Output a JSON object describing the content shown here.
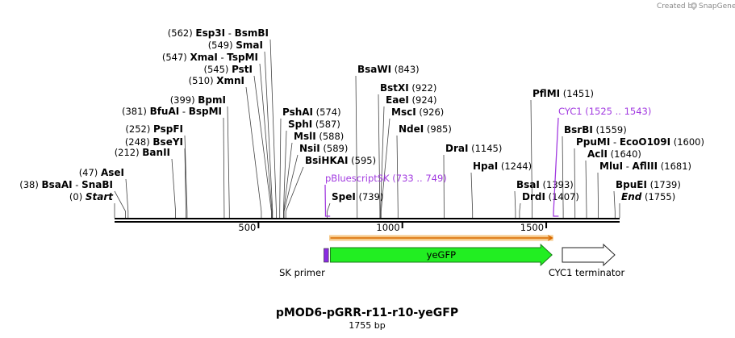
{
  "credit": {
    "text": "Created by",
    "brand": "SnapGene"
  },
  "plasmid": {
    "name": "pMOD6-pGRR-r11-r10-yeGFP",
    "size_label": "1755 bp"
  },
  "ruler": {
    "ticks": [
      {
        "pos": 500,
        "label": "500"
      },
      {
        "pos": 1000,
        "label": "1000"
      },
      {
        "pos": 1500,
        "label": "1500"
      }
    ]
  },
  "sites": [
    {
      "pos": 0,
      "pos_label": "(0)",
      "name": "Start",
      "extra": "",
      "italic": true,
      "side": "left"
    },
    {
      "pos": 38,
      "pos_label": "(38)",
      "name": "BsaAI",
      "extra": "SnaBI",
      "side": "left"
    },
    {
      "pos": 47,
      "pos_label": "(47)",
      "name": "AseI",
      "extra": "",
      "side": "left"
    },
    {
      "pos": 212,
      "pos_label": "(212)",
      "name": "BanII",
      "extra": "",
      "side": "left"
    },
    {
      "pos": 248,
      "pos_label": "(248)",
      "name": "BseYI",
      "extra": "",
      "side": "left"
    },
    {
      "pos": 252,
      "pos_label": "(252)",
      "name": "PspFI",
      "extra": "",
      "side": "left"
    },
    {
      "pos": 381,
      "pos_label": "(381)",
      "name": "BfuAI",
      "extra": "BspMI",
      "side": "left"
    },
    {
      "pos": 399,
      "pos_label": "(399)",
      "name": "BpmI",
      "extra": "",
      "side": "left"
    },
    {
      "pos": 510,
      "pos_label": "(510)",
      "name": "XmnI",
      "extra": "",
      "side": "left"
    },
    {
      "pos": 545,
      "pos_label": "(545)",
      "name": "PstI",
      "extra": "",
      "side": "left"
    },
    {
      "pos": 547,
      "pos_label": "(547)",
      "name": "XmaI",
      "extra": "TspMI",
      "side": "left"
    },
    {
      "pos": 549,
      "pos_label": "(549)",
      "name": "SmaI",
      "extra": "",
      "side": "left"
    },
    {
      "pos": 562,
      "pos_label": "(562)",
      "name": "Esp3I",
      "extra": "BsmBI",
      "side": "left"
    },
    {
      "pos": 574,
      "pos_label": "(574)",
      "name": "PshAI",
      "extra": "",
      "side": "right"
    },
    {
      "pos": 587,
      "pos_label": "(587)",
      "name": "SphI",
      "extra": "",
      "side": "right"
    },
    {
      "pos": 588,
      "pos_label": "(588)",
      "name": "MslI",
      "extra": "",
      "side": "right"
    },
    {
      "pos": 589,
      "pos_label": "(589)",
      "name": "NsiI",
      "extra": "",
      "side": "right"
    },
    {
      "pos": 595,
      "pos_label": "(595)",
      "name": "BsiHKAI",
      "extra": "",
      "side": "right"
    },
    {
      "pos": 739,
      "pos_label": "(739)",
      "name": "SpeI",
      "extra": "",
      "side": "right"
    },
    {
      "pos": 843,
      "pos_label": "(843)",
      "name": "BsaWI",
      "extra": "",
      "side": "right"
    },
    {
      "pos": 922,
      "pos_label": "(922)",
      "name": "BstXI",
      "extra": "",
      "side": "right"
    },
    {
      "pos": 924,
      "pos_label": "(924)",
      "name": "EaeI",
      "extra": "",
      "side": "right"
    },
    {
      "pos": 926,
      "pos_label": "(926)",
      "name": "MscI",
      "extra": "",
      "side": "right"
    },
    {
      "pos": 985,
      "pos_label": "(985)",
      "name": "NdeI",
      "extra": "",
      "side": "right"
    },
    {
      "pos": 1145,
      "pos_label": "(1145)",
      "name": "DraI",
      "extra": "",
      "side": "right"
    },
    {
      "pos": 1244,
      "pos_label": "(1244)",
      "name": "HpaI",
      "extra": "",
      "side": "right"
    },
    {
      "pos": 1393,
      "pos_label": "(1393)",
      "name": "BsaI",
      "extra": "",
      "side": "right"
    },
    {
      "pos": 1407,
      "pos_label": "(1407)",
      "name": "DrdI",
      "extra": "",
      "side": "right"
    },
    {
      "pos": 1451,
      "pos_label": "(1451)",
      "name": "PflMI",
      "extra": "",
      "side": "right"
    },
    {
      "pos": 1559,
      "pos_label": "(1559)",
      "name": "BsrBI",
      "extra": "",
      "side": "right"
    },
    {
      "pos": 1600,
      "pos_label": "(1600)",
      "name": "PpuMI",
      "extra": "EcoO109I",
      "side": "right"
    },
    {
      "pos": 1640,
      "pos_label": "(1640)",
      "name": "AclI",
      "extra": "",
      "side": "right"
    },
    {
      "pos": 1681,
      "pos_label": "(1681)",
      "name": "MluI",
      "extra": "AflIII",
      "side": "right"
    },
    {
      "pos": 1739,
      "pos_label": "(1739)",
      "name": "BpuEI",
      "extra": "",
      "side": "right"
    },
    {
      "pos": 1755,
      "pos_label": "(1755)",
      "name": "End",
      "extra": "",
      "italic": true,
      "side": "right"
    }
  ],
  "primer_sites": [
    {
      "name": "pBluescriptSK",
      "range_label": "(733 .. 749)",
      "start": 733,
      "end": 749
    },
    {
      "name": "CYC1",
      "range_label": "(1525 .. 1543)",
      "start": 1525,
      "end": 1543
    }
  ],
  "features": [
    {
      "name": "SK primer",
      "type": "primer",
      "start": 733,
      "end": 749,
      "color": "#8a2be2"
    },
    {
      "name": "yeGFP",
      "type": "cds",
      "start": 750,
      "end": 1520,
      "color": "#22ee22"
    },
    {
      "name": "CYC1 terminator",
      "type": "terminator",
      "start": 1526,
      "end": 1755,
      "color": "#ffffff"
    }
  ],
  "orf": {
    "start": 750,
    "end": 1520,
    "color": "#d96a00"
  },
  "colors": {
    "purple": "#a23be0",
    "orange": "#e07a10",
    "green": "#22ee22"
  }
}
